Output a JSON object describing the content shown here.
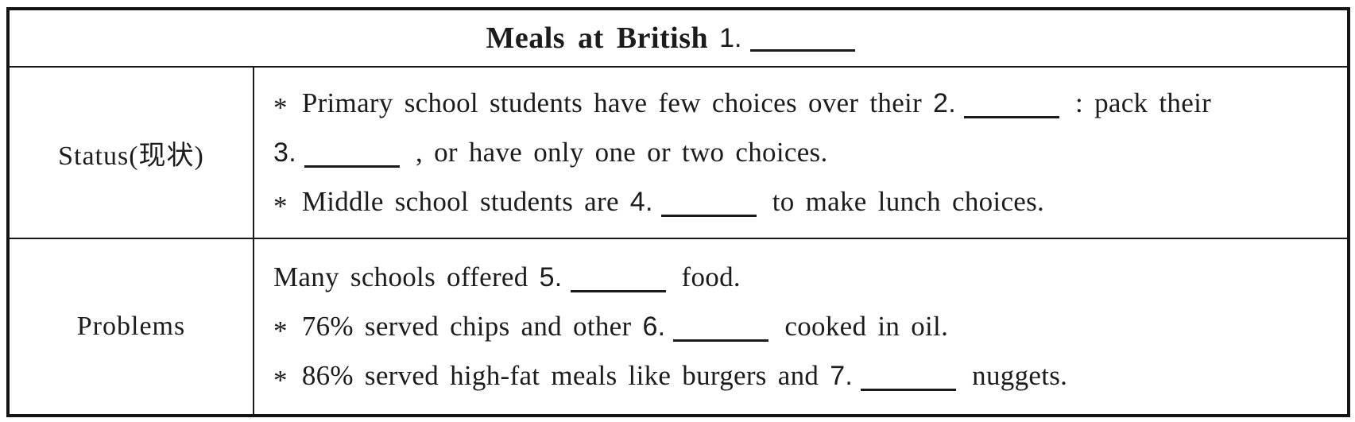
{
  "colors": {
    "text": "#1c1c1c",
    "border": "#141414",
    "background": "#ffffff"
  },
  "title": {
    "text": "Meals at British",
    "num": "1."
  },
  "rows": [
    {
      "label": "Status(现状)",
      "lines": [
        {
          "bullet": "*",
          "pre": "Primary school students have few choices over their",
          "num": "2.",
          "post": ": pack their"
        },
        {
          "num": "3.",
          "post": ", or have only one or two choices."
        },
        {
          "bullet": "*",
          "pre": "Middle school students are",
          "num": "4.",
          "post": "to make lunch choices."
        }
      ]
    },
    {
      "label": "Problems",
      "lines": [
        {
          "pre": "Many schools offered",
          "num": "5.",
          "post": "food."
        },
        {
          "bullet": "*",
          "pre": "76% served chips and other",
          "num": "6.",
          "post": "cooked in oil."
        },
        {
          "bullet": "*",
          "pre": "86% served high-fat meals like burgers and",
          "num": "7.",
          "post": "nuggets."
        }
      ]
    }
  ]
}
